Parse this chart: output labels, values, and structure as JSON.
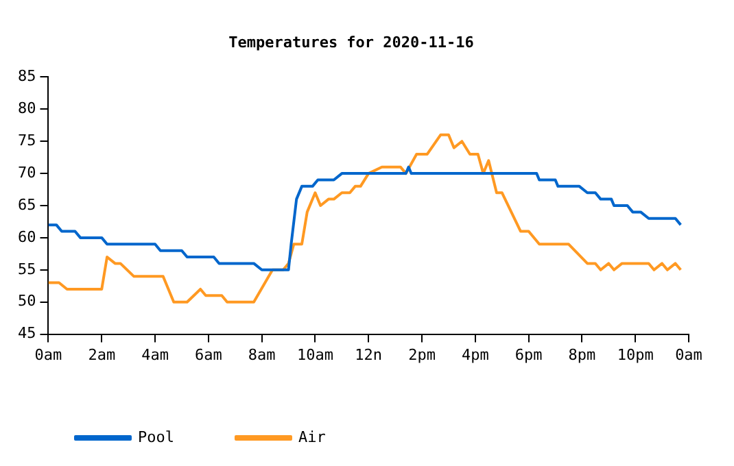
{
  "chart_data": {
    "type": "line",
    "title": "Temperatures for 2020-11-16",
    "xlim": [
      "2020-11-16T00:00",
      "2020-11-17T00:00"
    ],
    "xticks": [
      {
        "value": "2020-11-16T00:00",
        "label": "0am"
      },
      {
        "value": "2020-11-16T02:00",
        "label": "2am"
      },
      {
        "value": "2020-11-16T04:00",
        "label": "4am"
      },
      {
        "value": "2020-11-16T06:00",
        "label": "6am"
      },
      {
        "value": "2020-11-16T08:00",
        "label": "8am"
      },
      {
        "value": "2020-11-16T10:00",
        "label": "10am"
      },
      {
        "value": "2020-11-16T12:00",
        "label": "12n"
      },
      {
        "value": "2020-11-16T14:00",
        "label": "2pm"
      },
      {
        "value": "2020-11-16T16:00",
        "label": "4pm"
      },
      {
        "value": "2020-11-16T18:00",
        "label": "6pm"
      },
      {
        "value": "2020-11-16T20:00",
        "label": "8pm"
      },
      {
        "value": "2020-11-16T22:00",
        "label": "10pm"
      },
      {
        "value": "2020-11-17T00:00",
        "label": "0am"
      }
    ],
    "ylim": [
      45,
      85
    ],
    "yticks": [
      45,
      50,
      55,
      60,
      65,
      70,
      75,
      80,
      85
    ],
    "grid": false,
    "legend": "bottom left",
    "marker": "none",
    "line_style": "solid",
    "series": [
      {
        "name": "Pool",
        "color": "#0066cc",
        "x": [
          "2020-11-16T00:00",
          "2020-11-16T00:18",
          "2020-11-16T00:30",
          "2020-11-16T01:00",
          "2020-11-16T01:12",
          "2020-11-16T02:00",
          "2020-11-16T02:12",
          "2020-11-16T04:00",
          "2020-11-16T04:12",
          "2020-11-16T05:00",
          "2020-11-16T05:12",
          "2020-11-16T06:12",
          "2020-11-16T06:24",
          "2020-11-16T07:42",
          "2020-11-16T08:00",
          "2020-11-16T09:00",
          "2020-11-16T09:06",
          "2020-11-16T09:18",
          "2020-11-16T09:30",
          "2020-11-16T09:54",
          "2020-11-16T10:06",
          "2020-11-16T10:42",
          "2020-11-16T11:00",
          "2020-11-16T13:24",
          "2020-11-16T13:30",
          "2020-11-16T13:36",
          "2020-11-16T18:18",
          "2020-11-16T18:24",
          "2020-11-16T19:00",
          "2020-11-16T19:06",
          "2020-11-16T19:54",
          "2020-11-16T20:12",
          "2020-11-16T20:30",
          "2020-11-16T20:42",
          "2020-11-16T21:06",
          "2020-11-16T21:12",
          "2020-11-16T21:42",
          "2020-11-16T21:54",
          "2020-11-16T22:12",
          "2020-11-16T22:30",
          "2020-11-16T23:30",
          "2020-11-16T23:42"
        ],
        "values": [
          62,
          62,
          61,
          61,
          60,
          60,
          59,
          59,
          58,
          58,
          57,
          57,
          56,
          56,
          55,
          55,
          59,
          66,
          68,
          68,
          69,
          69,
          70,
          70,
          71,
          70,
          70,
          69,
          69,
          68,
          68,
          67,
          67,
          66,
          66,
          65,
          65,
          64,
          64,
          63,
          63,
          62
        ]
      },
      {
        "name": "Air",
        "color": "#ff9922",
        "x": [
          "2020-11-16T00:00",
          "2020-11-16T00:24",
          "2020-11-16T00:42",
          "2020-11-16T02:00",
          "2020-11-16T02:12",
          "2020-11-16T02:30",
          "2020-11-16T02:42",
          "2020-11-16T03:12",
          "2020-11-16T04:18",
          "2020-11-16T04:42",
          "2020-11-16T05:12",
          "2020-11-16T05:42",
          "2020-11-16T05:54",
          "2020-11-16T06:30",
          "2020-11-16T06:42",
          "2020-11-16T07:42",
          "2020-11-16T08:24",
          "2020-11-16T08:48",
          "2020-11-16T09:00",
          "2020-11-16T09:12",
          "2020-11-16T09:30",
          "2020-11-16T09:42",
          "2020-11-16T10:00",
          "2020-11-16T10:12",
          "2020-11-16T10:30",
          "2020-11-16T10:42",
          "2020-11-16T11:00",
          "2020-11-16T11:18",
          "2020-11-16T11:30",
          "2020-11-16T11:42",
          "2020-11-16T12:00",
          "2020-11-16T12:30",
          "2020-11-16T13:12",
          "2020-11-16T13:24",
          "2020-11-16T13:48",
          "2020-11-16T14:12",
          "2020-11-16T14:42",
          "2020-11-16T15:00",
          "2020-11-16T15:12",
          "2020-11-16T15:30",
          "2020-11-16T15:48",
          "2020-11-16T16:06",
          "2020-11-16T16:18",
          "2020-11-16T16:30",
          "2020-11-16T16:48",
          "2020-11-16T17:00",
          "2020-11-16T17:42",
          "2020-11-16T18:00",
          "2020-11-16T18:24",
          "2020-11-16T19:30",
          "2020-11-16T20:12",
          "2020-11-16T20:30",
          "2020-11-16T20:42",
          "2020-11-16T21:00",
          "2020-11-16T21:12",
          "2020-11-16T21:30",
          "2020-11-16T22:30",
          "2020-11-16T22:42",
          "2020-11-16T23:00",
          "2020-11-16T23:12",
          "2020-11-16T23:30",
          "2020-11-16T23:42"
        ],
        "values": [
          53,
          53,
          52,
          52,
          57,
          56,
          56,
          54,
          54,
          50,
          50,
          52,
          51,
          51,
          50,
          50,
          55,
          55,
          56,
          59,
          59,
          64,
          67,
          65,
          66,
          66,
          67,
          67,
          68,
          68,
          70,
          71,
          71,
          70,
          73,
          73,
          76,
          76,
          74,
          75,
          73,
          73,
          70,
          72,
          67,
          67,
          61,
          61,
          59,
          59,
          56,
          56,
          55,
          56,
          55,
          56,
          56,
          55,
          56,
          55,
          56,
          55
        ]
      }
    ]
  }
}
